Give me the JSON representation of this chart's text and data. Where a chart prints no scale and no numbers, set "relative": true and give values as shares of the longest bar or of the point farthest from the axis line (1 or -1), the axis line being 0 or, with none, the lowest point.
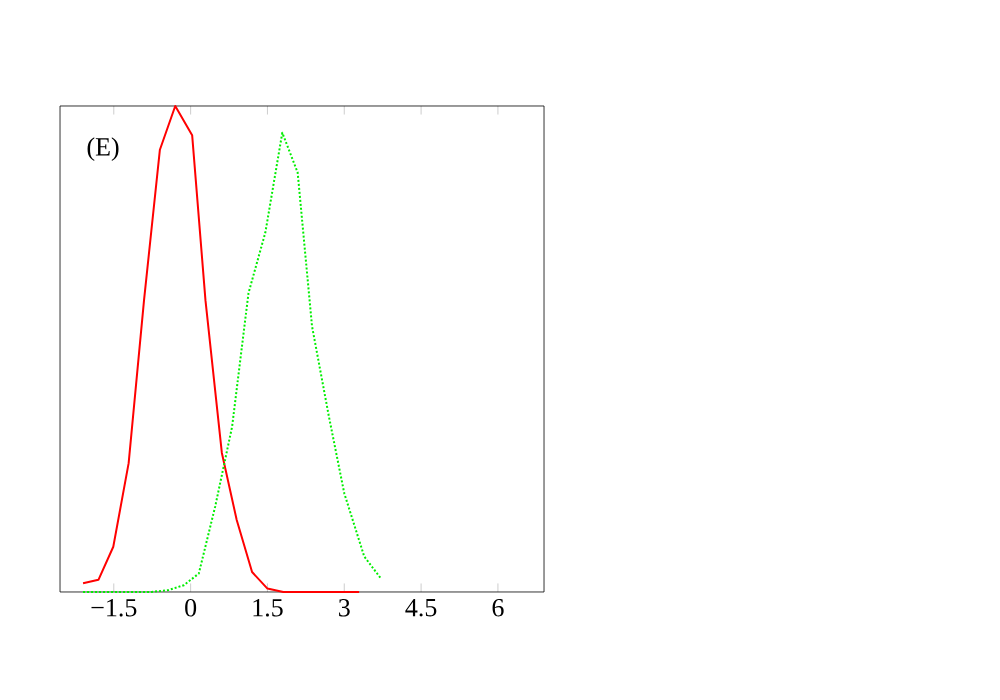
{
  "chart_data": {
    "type": "line",
    "relative": true,
    "annotations": [
      "(E)"
    ],
    "xlim": [
      -2.55,
      6.9
    ],
    "xticks": [
      {
        "value": -1.5,
        "label": "−1.5"
      },
      0,
      1.5,
      3,
      4.5,
      6
    ],
    "grid": false,
    "series": [
      {
        "color": "#ff0000",
        "line_style": "solid",
        "x": [
          -2.1,
          -1.8,
          -1.51,
          -1.21,
          -0.91,
          -0.6,
          -0.3,
          0.03,
          0.29,
          0.61,
          0.9,
          1.2,
          1.5,
          1.81,
          3.29
        ],
        "values": [
          0.018,
          0.025,
          0.093,
          0.265,
          0.6,
          0.91,
          1.0,
          0.94,
          0.6,
          0.286,
          0.148,
          0.041,
          0.007,
          0,
          0
        ]
      },
      {
        "color": "#00ee00",
        "line_style": "dotted",
        "x": [
          -2.1,
          -0.76,
          -0.43,
          -0.13,
          0.16,
          0.48,
          0.81,
          1.13,
          1.46,
          1.79,
          2.09,
          2.37,
          2.7,
          3.0,
          3.39,
          3.72
        ],
        "values": [
          0,
          0,
          0.004,
          0.014,
          0.038,
          0.176,
          0.34,
          0.615,
          0.74,
          0.945,
          0.863,
          0.547,
          0.361,
          0.203,
          0.073,
          0.027
        ]
      }
    ]
  }
}
